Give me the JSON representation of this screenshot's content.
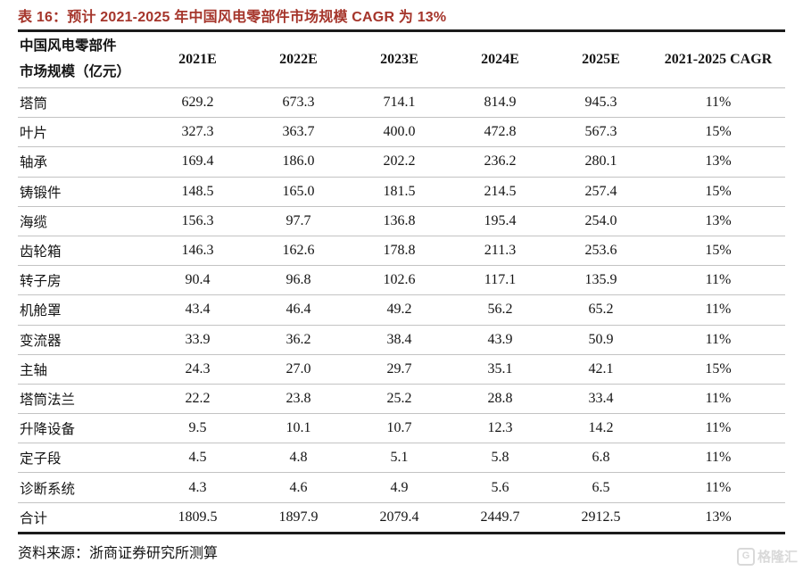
{
  "title": "表 16：预计 2021-2025 年中国风电零部件市场规模 CAGR 为 13%",
  "table": {
    "header": {
      "label_line1": "中国风电零部件",
      "label_line2": "市场规模（亿元）",
      "columns": [
        "2021E",
        "2022E",
        "2023E",
        "2024E",
        "2025E",
        "2021-2025 CAGR"
      ]
    },
    "rows": [
      {
        "label": "塔筒",
        "values": [
          "629.2",
          "673.3",
          "714.1",
          "814.9",
          "945.3",
          "11%"
        ]
      },
      {
        "label": "叶片",
        "values": [
          "327.3",
          "363.7",
          "400.0",
          "472.8",
          "567.3",
          "15%"
        ]
      },
      {
        "label": "轴承",
        "values": [
          "169.4",
          "186.0",
          "202.2",
          "236.2",
          "280.1",
          "13%"
        ]
      },
      {
        "label": "铸锻件",
        "values": [
          "148.5",
          "165.0",
          "181.5",
          "214.5",
          "257.4",
          "15%"
        ]
      },
      {
        "label": "海缆",
        "values": [
          "156.3",
          "97.7",
          "136.8",
          "195.4",
          "254.0",
          "13%"
        ]
      },
      {
        "label": "齿轮箱",
        "values": [
          "146.3",
          "162.6",
          "178.8",
          "211.3",
          "253.6",
          "15%"
        ]
      },
      {
        "label": "转子房",
        "values": [
          "90.4",
          "96.8",
          "102.6",
          "117.1",
          "135.9",
          "11%"
        ]
      },
      {
        "label": "机舱罩",
        "values": [
          "43.4",
          "46.4",
          "49.2",
          "56.2",
          "65.2",
          "11%"
        ]
      },
      {
        "label": "变流器",
        "values": [
          "33.9",
          "36.2",
          "38.4",
          "43.9",
          "50.9",
          "11%"
        ]
      },
      {
        "label": "主轴",
        "values": [
          "24.3",
          "27.0",
          "29.7",
          "35.1",
          "42.1",
          "15%"
        ]
      },
      {
        "label": "塔筒法兰",
        "values": [
          "22.2",
          "23.8",
          "25.2",
          "28.8",
          "33.4",
          "11%"
        ]
      },
      {
        "label": "升降设备",
        "values": [
          "9.5",
          "10.1",
          "10.7",
          "12.3",
          "14.2",
          "11%"
        ]
      },
      {
        "label": "定子段",
        "values": [
          "4.5",
          "4.8",
          "5.1",
          "5.8",
          "6.8",
          "11%"
        ]
      },
      {
        "label": "诊断系统",
        "values": [
          "4.3",
          "4.6",
          "4.9",
          "5.6",
          "6.5",
          "11%"
        ]
      },
      {
        "label": "合计",
        "values": [
          "1809.5",
          "1897.9",
          "2079.4",
          "2449.7",
          "2912.5",
          "13%"
        ],
        "is_total": true
      }
    ]
  },
  "chart_data": {
    "type": "table",
    "title": "预计 2021-2025 年中国风电零部件市场规模 CAGR 为 13%",
    "unit": "亿元",
    "columns": [
      "中国风电零部件市场规模（亿元）",
      "2021E",
      "2022E",
      "2023E",
      "2024E",
      "2025E",
      "2021-2025 CAGR"
    ],
    "rows": [
      [
        "塔筒",
        629.2,
        673.3,
        714.1,
        814.9,
        945.3,
        "11%"
      ],
      [
        "叶片",
        327.3,
        363.7,
        400.0,
        472.8,
        567.3,
        "15%"
      ],
      [
        "轴承",
        169.4,
        186.0,
        202.2,
        236.2,
        280.1,
        "13%"
      ],
      [
        "铸锻件",
        148.5,
        165.0,
        181.5,
        214.5,
        257.4,
        "15%"
      ],
      [
        "海缆",
        156.3,
        97.7,
        136.8,
        195.4,
        254.0,
        "13%"
      ],
      [
        "齿轮箱",
        146.3,
        162.6,
        178.8,
        211.3,
        253.6,
        "15%"
      ],
      [
        "转子房",
        90.4,
        96.8,
        102.6,
        117.1,
        135.9,
        "11%"
      ],
      [
        "机舱罩",
        43.4,
        46.4,
        49.2,
        56.2,
        65.2,
        "11%"
      ],
      [
        "变流器",
        33.9,
        36.2,
        38.4,
        43.9,
        50.9,
        "11%"
      ],
      [
        "主轴",
        24.3,
        27.0,
        29.7,
        35.1,
        42.1,
        "15%"
      ],
      [
        "塔筒法兰",
        22.2,
        23.8,
        25.2,
        28.8,
        33.4,
        "11%"
      ],
      [
        "升降设备",
        9.5,
        10.1,
        10.7,
        12.3,
        14.2,
        "11%"
      ],
      [
        "定子段",
        4.5,
        4.8,
        5.1,
        5.8,
        6.8,
        "11%"
      ],
      [
        "诊断系统",
        4.3,
        4.6,
        4.9,
        5.6,
        6.5,
        "11%"
      ],
      [
        "合计",
        1809.5,
        1897.9,
        2079.4,
        2449.7,
        2912.5,
        "13%"
      ]
    ]
  },
  "source": "资料来源：浙商证券研究所测算",
  "watermark": {
    "logo_letter": "G",
    "label": "格隆汇"
  },
  "colors": {
    "title_red": "#A5352B",
    "rule_heavy": "#1c1c1c",
    "rule_light": "#c3c3c3",
    "text": "#141414",
    "watermark_gray": "#d9d9d9"
  }
}
